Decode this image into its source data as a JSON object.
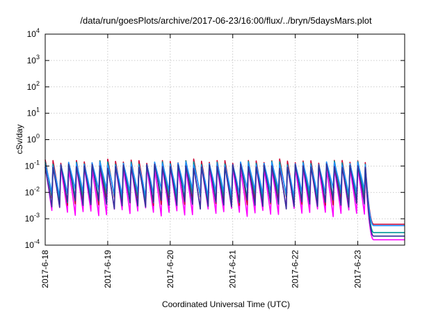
{
  "chart_data": {
    "type": "line",
    "title": "/data/run/goesPlots/archive/2017-06-23/16:00/flux/../bryn/5daysMars.plot",
    "xlabel": "Coordinated Universal Time (UTC)",
    "ylabel": "cSv/day",
    "yscale": "log",
    "ylim": [
      0.0001,
      10000
    ],
    "xlim_days": [
      0,
      5.75
    ],
    "grid": true,
    "x_tick_labels": [
      "2017-6-18",
      "2017-6-19",
      "2017-6-20",
      "2017-6-21",
      "2017-6-22",
      "2017-6-23"
    ],
    "y_tick_labels": [
      {
        "base": "10",
        "exp": "-4"
      },
      {
        "base": "10",
        "exp": "-3"
      },
      {
        "base": "10",
        "exp": "-2"
      },
      {
        "base": "10",
        "exp": "-1"
      },
      {
        "base": "10",
        "exp": "0"
      },
      {
        "base": "10",
        "exp": "1"
      },
      {
        "base": "10",
        "exp": "2"
      },
      {
        "base": "10",
        "exp": "3"
      },
      {
        "base": "10",
        "exp": "4"
      }
    ],
    "pattern": {
      "period_hours": 3,
      "cycle_start_day": 0.0,
      "last_cycle_end_day": 5.12,
      "decay_end_day": 5.25
    },
    "series": [
      {
        "color": "#ff00ff",
        "peak": 0.085,
        "trough": 0.0018,
        "final": 0.00016
      },
      {
        "color": "#cc0033",
        "peak": 0.15,
        "trough": 0.0045,
        "final": 0.00062
      },
      {
        "color": "#009999",
        "peak": 0.13,
        "trough": 0.006,
        "final": 0.0003
      },
      {
        "color": "#1e90ff",
        "peak": 0.12,
        "trough": 0.01,
        "final": 0.00055
      },
      {
        "color": "#333399",
        "peak": 0.1,
        "trough": 0.0035,
        "final": 0.00022
      }
    ]
  }
}
